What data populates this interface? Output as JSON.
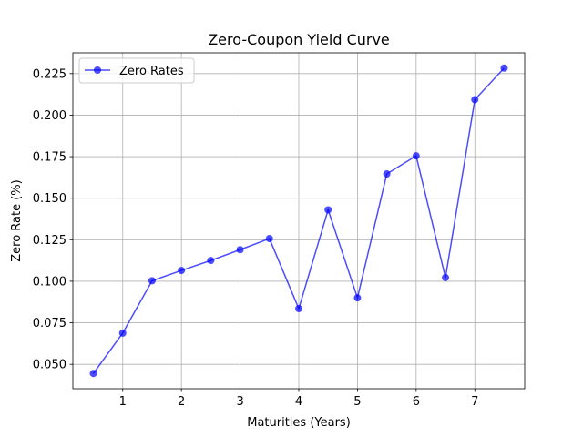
{
  "chart_data": {
    "type": "line",
    "title": "Zero-Coupon Yield Curve",
    "xlabel": "Maturities (Years)",
    "ylabel": "Zero Rate (%)",
    "x": [
      0.5,
      1.0,
      1.5,
      2.0,
      2.5,
      3.0,
      3.5,
      4.0,
      4.5,
      5.0,
      5.5,
      6.0,
      6.5,
      7.0,
      7.5
    ],
    "series": [
      {
        "name": "Zero Rates",
        "values": [
          0.0445,
          0.0688,
          0.1003,
          0.1065,
          0.1125,
          0.119,
          0.1257,
          0.0835,
          0.143,
          0.09,
          0.1646,
          0.1755,
          0.1022,
          0.2093,
          0.2283
        ],
        "color": "#0000ff",
        "marker": "circle"
      }
    ],
    "xlim": [
      0.15,
      7.85
    ],
    "ylim": [
      0.0353,
      0.2375
    ],
    "xticks": [
      1,
      2,
      3,
      4,
      5,
      6,
      7
    ],
    "xtick_labels": [
      "1",
      "2",
      "3",
      "4",
      "5",
      "6",
      "7"
    ],
    "yticks": [
      0.05,
      0.075,
      0.1,
      0.125,
      0.15,
      0.175,
      0.2,
      0.225
    ],
    "ytick_labels": [
      "0.050",
      "0.075",
      "0.100",
      "0.125",
      "0.150",
      "0.175",
      "0.200",
      "0.225"
    ],
    "grid": true,
    "legend_position": "top-left"
  }
}
